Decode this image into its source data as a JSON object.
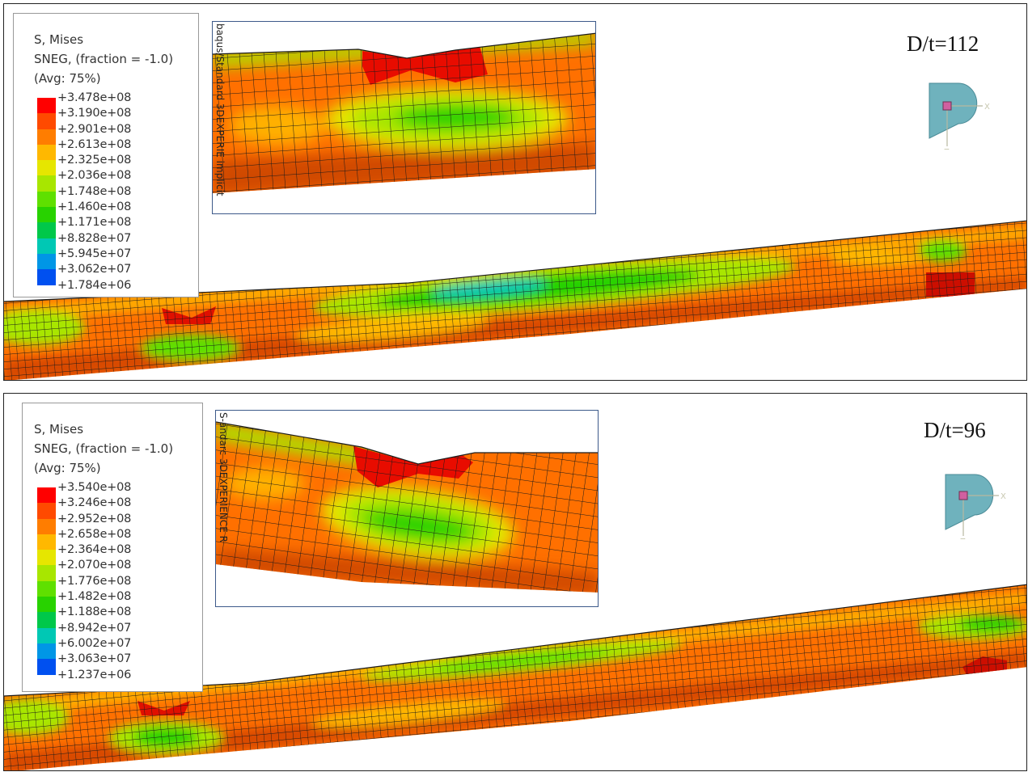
{
  "panels": [
    {
      "title": "D/t=112",
      "legend": {
        "line1": "S, Mises",
        "line2": "SNEG, (fraction = -1.0)",
        "line3": "(Avg: 75%)",
        "values": [
          "+3.478e+08",
          "+3.190e+08",
          "+2.901e+08",
          "+2.613e+08",
          "+2.325e+08",
          "+2.036e+08",
          "+1.748e+08",
          "+1.460e+08",
          "+1.171e+08",
          "+8.828e+07",
          "+5.945e+07",
          "+3.062e+07",
          "+1.784e+06"
        ]
      },
      "inset_caption": "baqus/Standard 3DEXPERIE implicit"
    },
    {
      "title": "D/t=96",
      "legend": {
        "line1": "S, Mises",
        "line2": "SNEG, (fraction = -1.0)",
        "line3": "(Avg: 75%)",
        "values": [
          "+3.540e+08",
          "+3.246e+08",
          "+2.952e+08",
          "+2.658e+08",
          "+2.364e+08",
          "+2.070e+08",
          "+1.776e+08",
          "+1.482e+08",
          "+1.188e+08",
          "+8.942e+07",
          "+6.002e+07",
          "+3.063e+07",
          "+1.237e+06"
        ]
      },
      "inset_caption": "S-andarc 3DEXPERIENCE R"
    }
  ],
  "contour_colors": [
    "#ff0000",
    "#ff4a00",
    "#ff7d00",
    "#ffb800",
    "#e6e600",
    "#a8e600",
    "#5fe000",
    "#28d200",
    "#00c84a",
    "#00c8b4",
    "#0096e6",
    "#0050f0",
    "#0000ff"
  ],
  "triad": {
    "x_label": "X",
    "z_label": "Z"
  }
}
